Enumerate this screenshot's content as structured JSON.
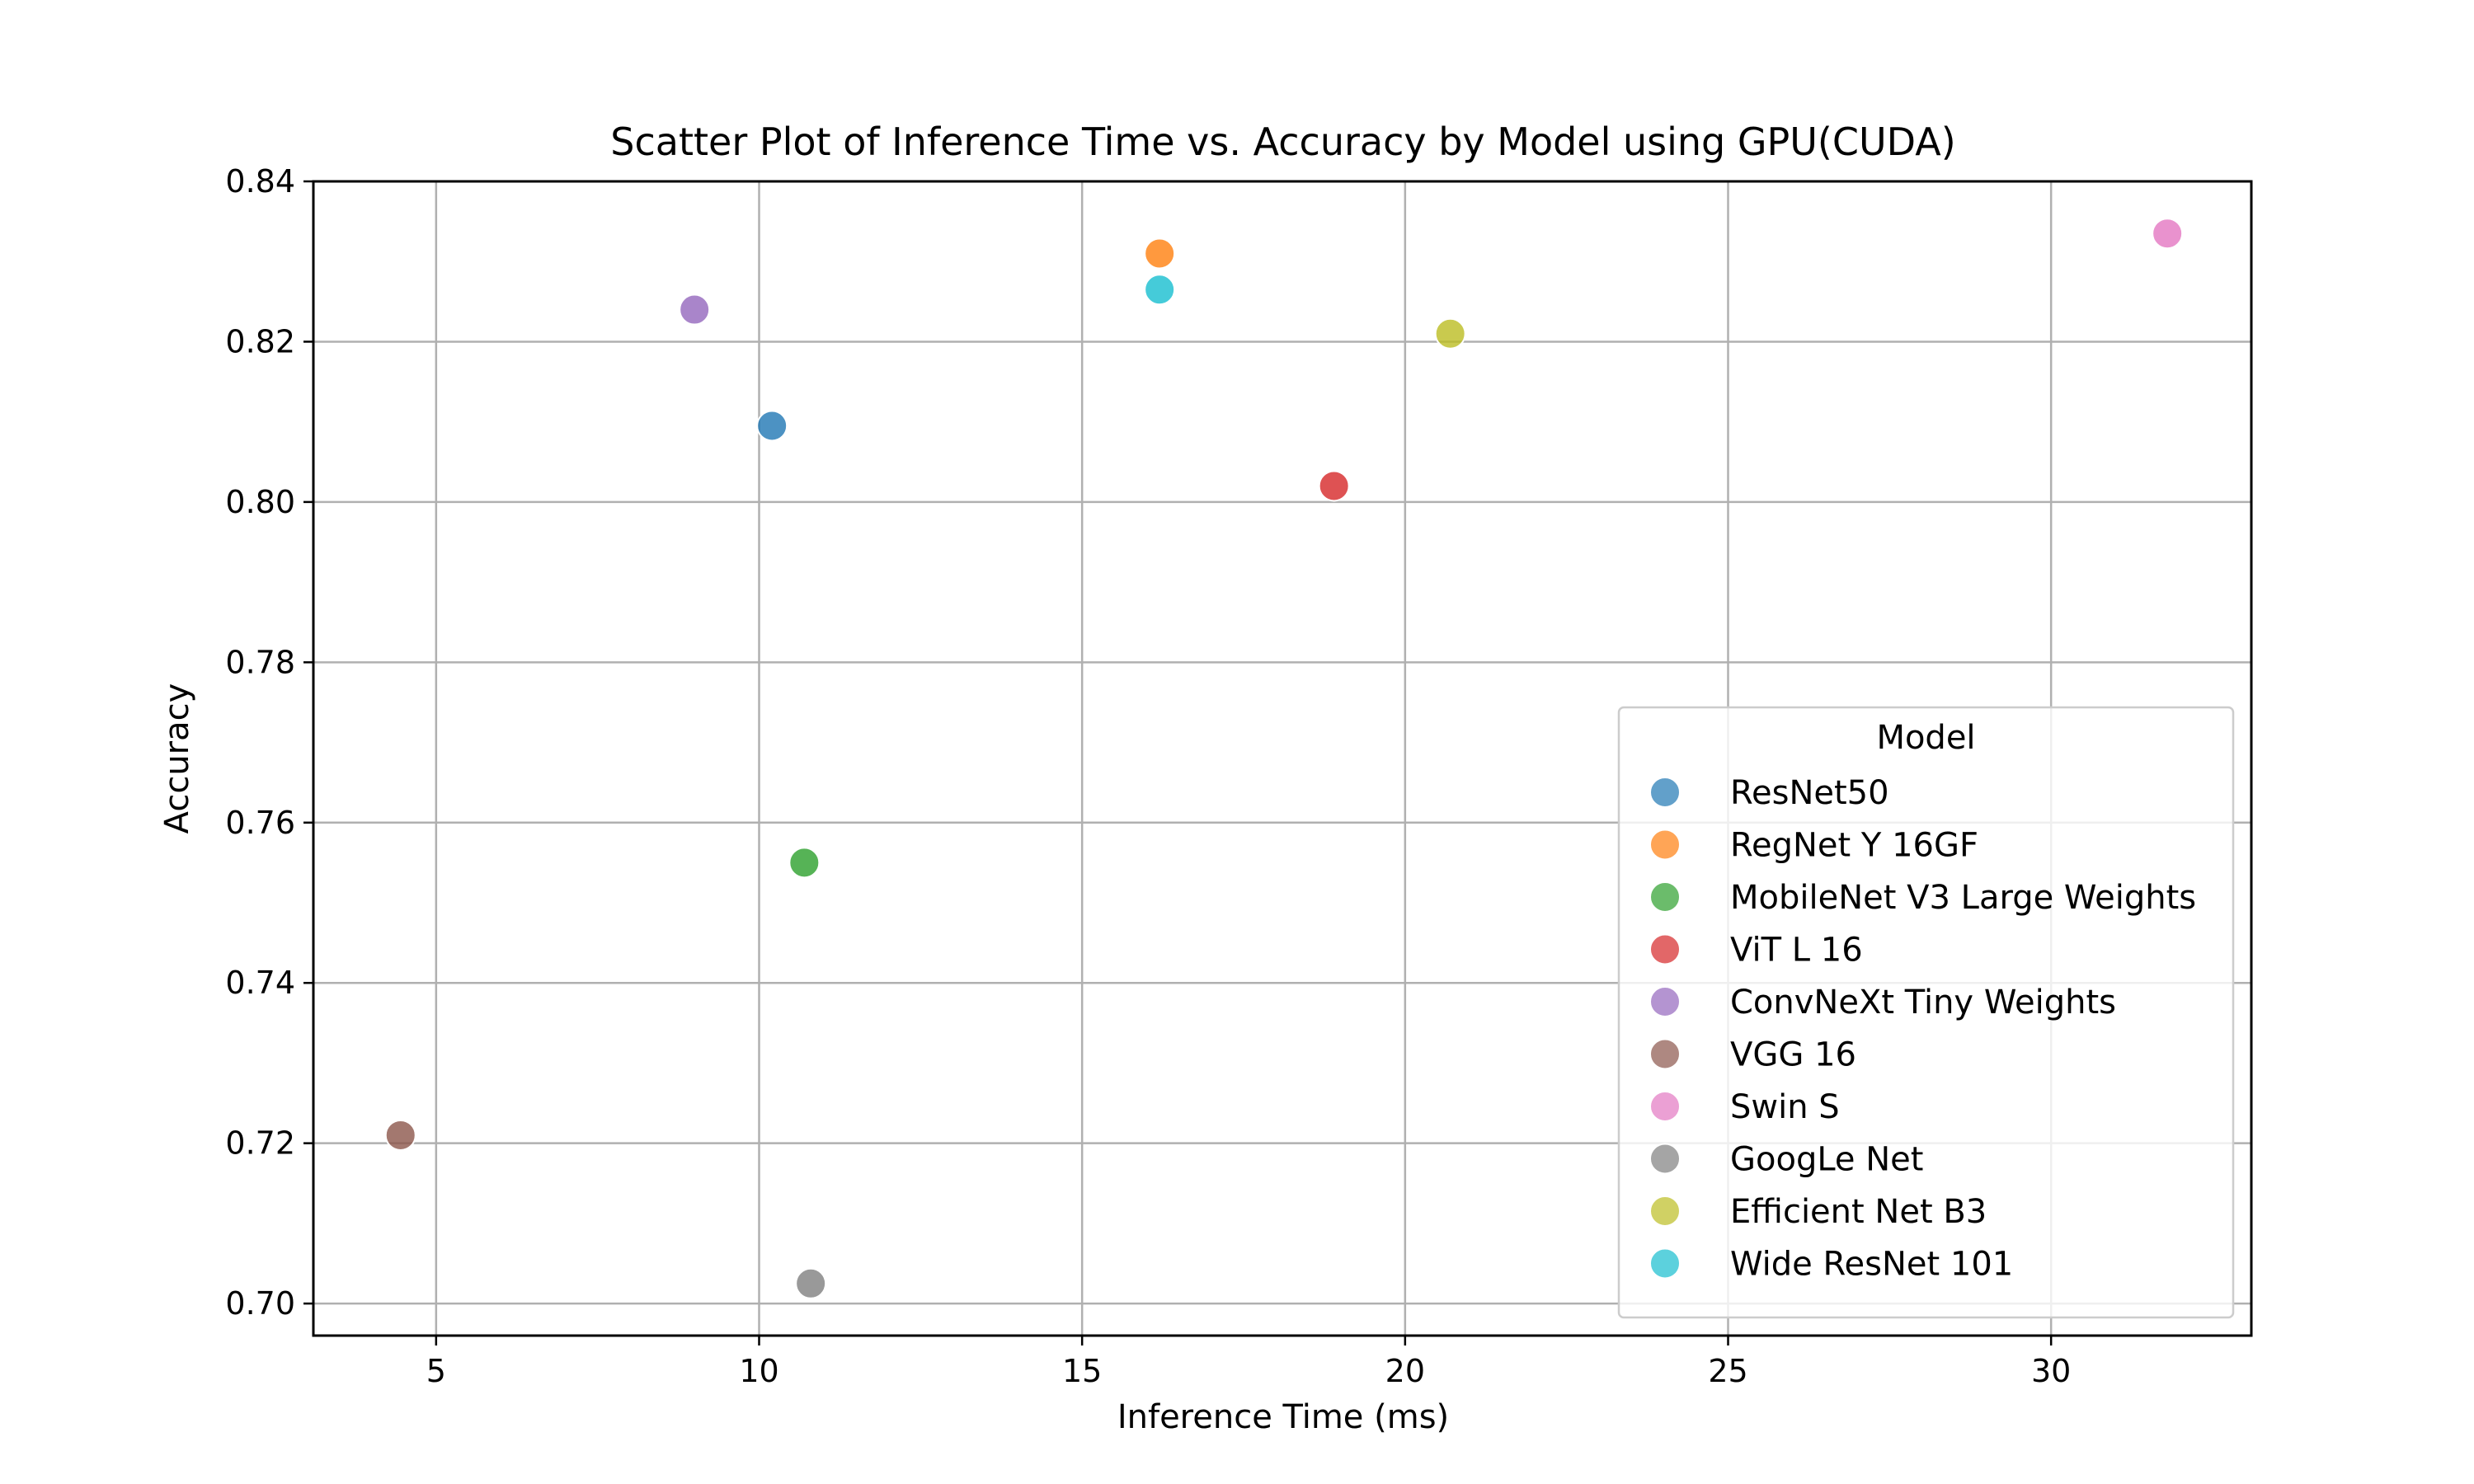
{
  "chart_data": {
    "type": "scatter",
    "title": "Scatter Plot of Inference Time vs. Accuracy by Model using GPU(CUDA)",
    "xlabel": "Inference Time (ms)",
    "ylabel": "Accuracy",
    "xlim": [
      3.1,
      33.1
    ],
    "ylim": [
      0.696,
      0.84
    ],
    "xticks": [
      5,
      10,
      15,
      20,
      25,
      30
    ],
    "yticks": [
      0.7,
      0.72,
      0.74,
      0.76,
      0.78,
      0.8,
      0.82,
      0.84
    ],
    "xtick_labels": [
      "5",
      "10",
      "15",
      "20",
      "25",
      "30"
    ],
    "ytick_labels": [
      "0.70",
      "0.72",
      "0.74",
      "0.76",
      "0.78",
      "0.80",
      "0.82",
      "0.84"
    ],
    "grid": true,
    "legend_title": "Model",
    "legend_position": "lower-right",
    "series": [
      {
        "name": "ResNet50",
        "color": "#1f77b4",
        "x": [
          10.2
        ],
        "y": [
          0.8095
        ]
      },
      {
        "name": "RegNet Y 16GF",
        "color": "#ff7f0e",
        "x": [
          16.2
        ],
        "y": [
          0.831
        ]
      },
      {
        "name": "MobileNet V3 Large Weights",
        "color": "#2ca02c",
        "x": [
          10.7
        ],
        "y": [
          0.755
        ]
      },
      {
        "name": "ViT L 16",
        "color": "#d62728",
        "x": [
          18.9
        ],
        "y": [
          0.802
        ]
      },
      {
        "name": "ConvNeXt Tiny Weights",
        "color": "#9467bd",
        "x": [
          9.0
        ],
        "y": [
          0.824
        ]
      },
      {
        "name": "VGG 16",
        "color": "#8c564b",
        "x": [
          4.45
        ],
        "y": [
          0.721
        ]
      },
      {
        "name": "Swin S",
        "color": "#e377c2",
        "x": [
          31.8
        ],
        "y": [
          0.8335
        ]
      },
      {
        "name": "GoogLe Net",
        "color": "#7f7f7f",
        "x": [
          10.8
        ],
        "y": [
          0.7025
        ]
      },
      {
        "name": "Efficient Net B3",
        "color": "#bcbd22",
        "x": [
          20.7
        ],
        "y": [
          0.821
        ]
      },
      {
        "name": "Wide ResNet 101",
        "color": "#17becf",
        "x": [
          16.2
        ],
        "y": [
          0.8265
        ]
      }
    ]
  }
}
